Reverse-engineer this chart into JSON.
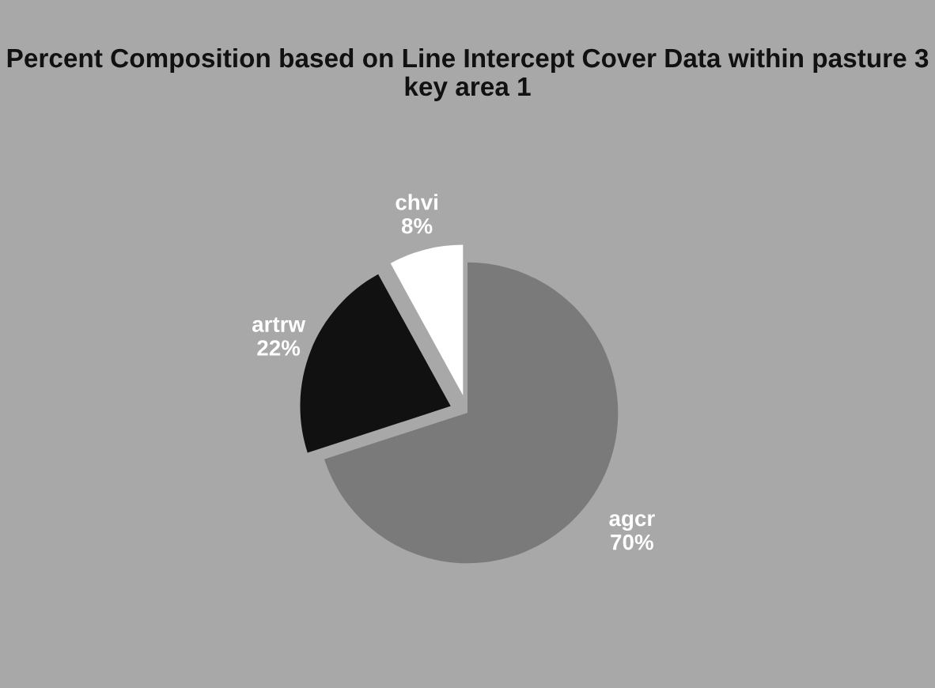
{
  "chart_data": {
    "type": "pie",
    "title": "Percent Composition based on Line Intercept Cover Data within pasture 3 key area 1",
    "categories": [
      "agcr",
      "artrw",
      "chvi"
    ],
    "values": [
      70,
      22,
      8
    ],
    "colors": [
      "#7a7a7a",
      "#111111",
      "#ffffff"
    ],
    "value_labels": [
      "70%",
      "22%",
      "8%"
    ]
  }
}
